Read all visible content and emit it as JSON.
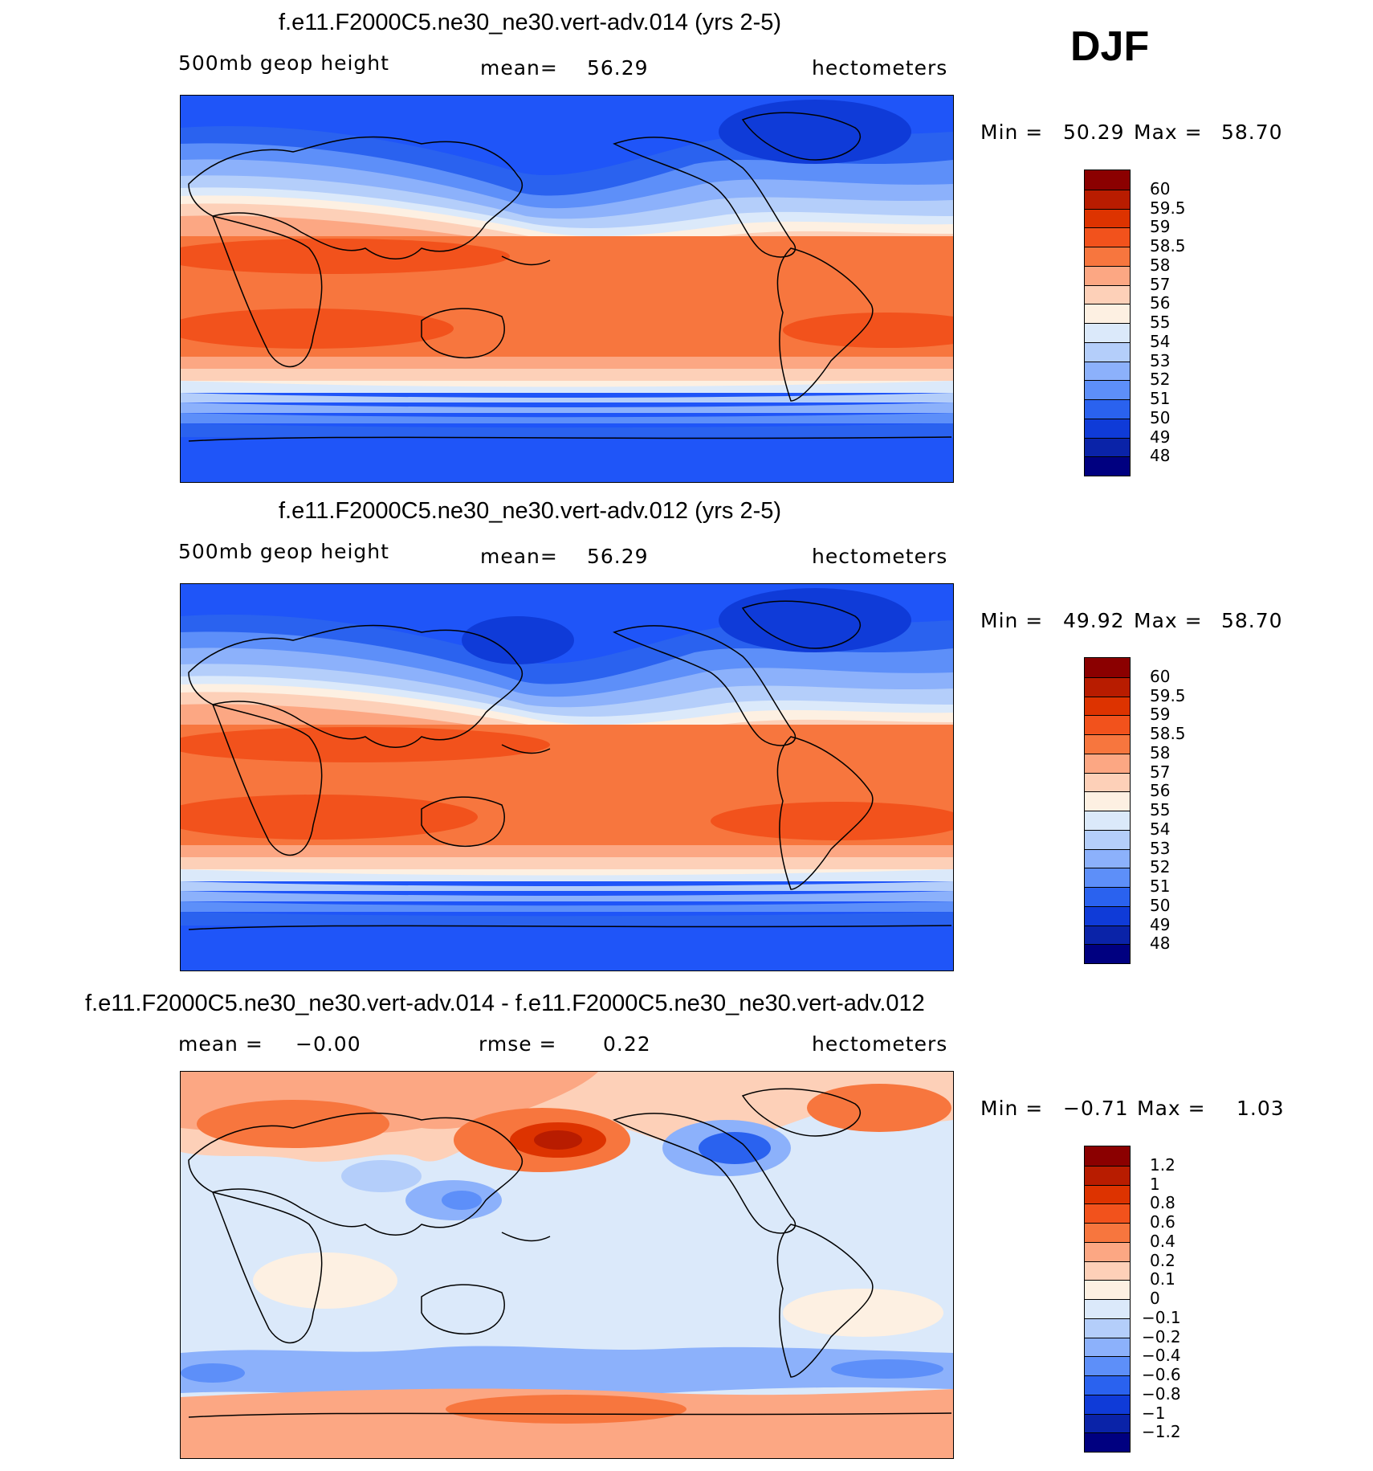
{
  "season": "DJF",
  "units": "hectometers",
  "chart_data": [
    {
      "type": "contour-map",
      "title": "f.e11.F2000C5.ne30_ne30.vert-adv.014 (yrs 2-5)",
      "variable": "500mb  geop  height",
      "mean_label": "mean=",
      "mean": "56.29",
      "units": "hectometers",
      "min_label": "Min =",
      "min": "50.29",
      "max_label": "Max =",
      "max": "58.70",
      "colorbar": {
        "levels": [
          "60",
          "59.5",
          "59",
          "58.5",
          "58",
          "57",
          "56",
          "55",
          "54",
          "53",
          "52",
          "51",
          "50",
          "49",
          "48"
        ],
        "colors": [
          "#8b0000",
          "#b81c00",
          "#dd3300",
          "#f2521c",
          "#f7763e",
          "#fca783",
          "#fdd0b8",
          "#fdf0e2",
          "#dbe9fa",
          "#b4cefa",
          "#8cb1fb",
          "#5d8ff9",
          "#2a62ef",
          "#0f3bd8",
          "#0a23a8",
          "#000080"
        ]
      }
    },
    {
      "type": "contour-map",
      "title": "f.e11.F2000C5.ne30_ne30.vert-adv.012 (yrs 2-5)",
      "variable": "500mb  geop  height",
      "mean_label": "mean=",
      "mean": "56.29",
      "units": "hectometers",
      "min_label": "Min =",
      "min": "49.92",
      "max_label": "Max =",
      "max": "58.70",
      "colorbar": {
        "levels": [
          "60",
          "59.5",
          "59",
          "58.5",
          "58",
          "57",
          "56",
          "55",
          "54",
          "53",
          "52",
          "51",
          "50",
          "49",
          "48"
        ],
        "colors": [
          "#8b0000",
          "#b81c00",
          "#dd3300",
          "#f2521c",
          "#f7763e",
          "#fca783",
          "#fdd0b8",
          "#fdf0e2",
          "#dbe9fa",
          "#b4cefa",
          "#8cb1fb",
          "#5d8ff9",
          "#2a62ef",
          "#0f3bd8",
          "#0a23a8",
          "#000080"
        ]
      }
    },
    {
      "type": "contour-map",
      "title": "f.e11.F2000C5.ne30_ne30.vert-adv.014 - f.e11.F2000C5.ne30_ne30.vert-adv.012",
      "mean_label": "mean =",
      "mean": "−0.00",
      "rmse_label": "rmse =",
      "rmse": "0.22",
      "units": "hectometers",
      "min_label": "Min =",
      "min": "−0.71",
      "max_label": "Max =",
      "max": "1.03",
      "colorbar": {
        "levels": [
          "1.2",
          "1",
          "0.8",
          "0.6",
          "0.4",
          "0.2",
          "0.1",
          "0",
          "−0.1",
          "−0.2",
          "−0.4",
          "−0.6",
          "−0.8",
          "−1",
          "−1.2"
        ],
        "colors": [
          "#8b0000",
          "#b81c00",
          "#dd3300",
          "#f2521c",
          "#f7763e",
          "#fca783",
          "#fdd0b8",
          "#fdf0e2",
          "#dbe9fa",
          "#b4cefa",
          "#8cb1fb",
          "#5d8ff9",
          "#2a62ef",
          "#0f3bd8",
          "#0a23a8",
          "#000080"
        ]
      }
    }
  ]
}
